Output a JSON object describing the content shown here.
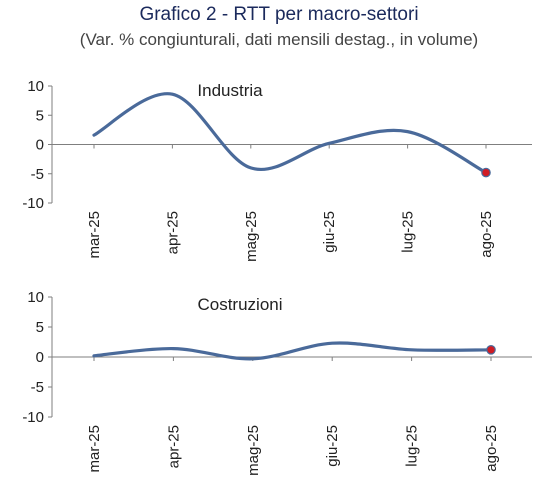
{
  "title": "Grafico 2 - RTT per macro-settori",
  "subtitle": "(Var. % congiunturali, dati mensili destag., in volume)",
  "colors": {
    "line": "#4a6a9a",
    "marker": "#d01c24",
    "axis": "#7f7f7f",
    "title": "#1b2a5c"
  },
  "chart_data": [
    {
      "type": "line",
      "label": "Industria",
      "categories": [
        "mar-25",
        "apr-25",
        "mag-25",
        "giu-25",
        "lug-25",
        "ago-25"
      ],
      "values": [
        1.6,
        8.6,
        -4.0,
        0.2,
        2.2,
        -4.8
      ],
      "ylim": [
        -10,
        10
      ],
      "yticks": [
        "10",
        "5",
        "0",
        "-5",
        "-10"
      ],
      "grid": false,
      "last_point_marker": true
    },
    {
      "type": "line",
      "label": "Costruzioni",
      "categories": [
        "mar-25",
        "apr-25",
        "mag-25",
        "giu-25",
        "lug-25",
        "ago-25"
      ],
      "values": [
        0.2,
        1.4,
        -0.3,
        2.3,
        1.2,
        1.2
      ],
      "ylim": [
        -10,
        10
      ],
      "yticks": [
        "10",
        "5",
        "0",
        "-5",
        "-10"
      ],
      "grid": false,
      "last_point_marker": true
    }
  ]
}
